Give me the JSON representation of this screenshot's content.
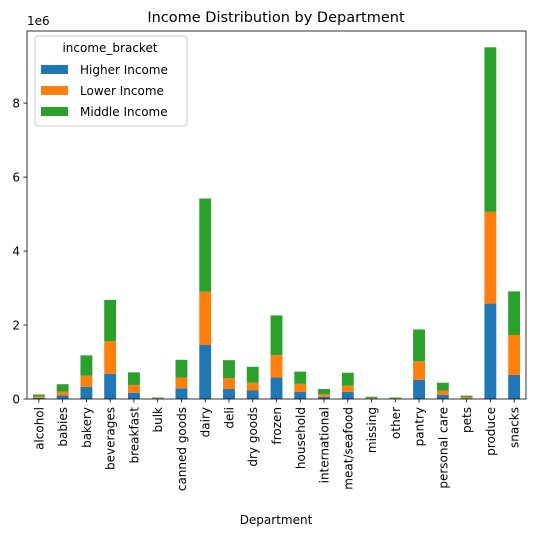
{
  "chart_data": {
    "type": "bar",
    "stacked": true,
    "title": "Income Distribution by Department",
    "xlabel": "Department",
    "ylabel": "",
    "y_scale_label": "1e6",
    "y_scale": 1000000,
    "ylim": [
      0,
      9.95
    ],
    "yticks": [
      0,
      2,
      4,
      6,
      8
    ],
    "grid": false,
    "legend": {
      "title": "income_bracket",
      "placement": "top-left"
    },
    "categories": [
      "alcohol",
      "babies",
      "bakery",
      "beverages",
      "breakfast",
      "bulk",
      "canned goods",
      "dairy",
      "deli",
      "dry goods",
      "frozen",
      "household",
      "international",
      "meat/seafood",
      "missing",
      "other",
      "pantry",
      "personal care",
      "pets",
      "produce",
      "snacks"
    ],
    "series": [
      {
        "name": "Higher Income",
        "color": "#1f77b4",
        "values": [
          0.03,
          0.1,
          0.33,
          0.68,
          0.17,
          0.01,
          0.29,
          1.47,
          0.27,
          0.23,
          0.58,
          0.19,
          0.06,
          0.19,
          0.01,
          0.01,
          0.52,
          0.11,
          0.02,
          2.58,
          0.65
        ]
      },
      {
        "name": "Lower Income",
        "color": "#ff7f0e",
        "values": [
          0.04,
          0.1,
          0.3,
          0.88,
          0.21,
          0.01,
          0.29,
          1.43,
          0.29,
          0.21,
          0.61,
          0.22,
          0.07,
          0.17,
          0.02,
          0.01,
          0.5,
          0.12,
          0.03,
          2.48,
          1.08
        ]
      },
      {
        "name": "Middle Income",
        "color": "#2ca02c",
        "values": [
          0.05,
          0.2,
          0.55,
          1.12,
          0.34,
          0.02,
          0.48,
          2.52,
          0.49,
          0.43,
          1.07,
          0.33,
          0.14,
          0.35,
          0.03,
          0.02,
          0.86,
          0.21,
          0.04,
          4.45,
          1.18
        ]
      }
    ]
  }
}
